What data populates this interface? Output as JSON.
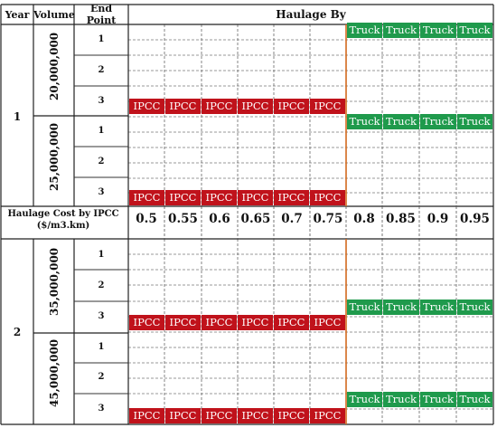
{
  "header": {
    "year": "Year",
    "volume": "Volume",
    "end_point": "End Point",
    "haulage_by": "Haulage By"
  },
  "cost_row": {
    "title_line1": "Haulage Cost by IPCC",
    "title_line2": "($/m3.km)",
    "values": [
      "0.5",
      "0.55",
      "0.6",
      "0.65",
      "0.7",
      "0.75",
      "0.8",
      "0.85",
      "0.9",
      "0.95"
    ]
  },
  "years": [
    {
      "year": "1",
      "volumes": [
        {
          "volume": "20,000,000",
          "end_points": [
            "1",
            "2",
            "3"
          ]
        },
        {
          "volume": "25,000,000",
          "end_points": [
            "1",
            "2",
            "3"
          ]
        }
      ]
    },
    {
      "year": "2",
      "volumes": [
        {
          "volume": "35,000,000",
          "end_points": [
            "1",
            "2",
            "3"
          ]
        },
        {
          "volume": "45,000,000",
          "end_points": [
            "1",
            "2",
            "3"
          ]
        }
      ]
    }
  ],
  "labels": {
    "ipcc": "IPCC",
    "truck": "Truck"
  },
  "colors": {
    "ipcc": "#c0121b",
    "truck": "#1f9a4c",
    "threshold_line": "#d2691e"
  }
}
